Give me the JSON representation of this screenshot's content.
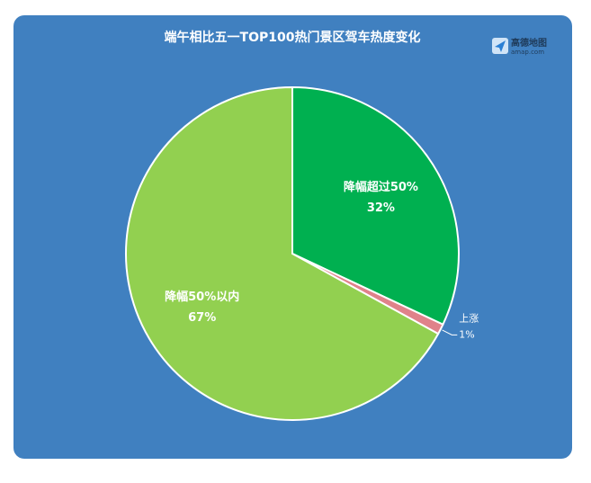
{
  "chart_data": {
    "type": "pie",
    "title": "端午相比五一TOP100热门景区驾车热度变化",
    "logo_name": "高德地图",
    "logo_url": "amap.com",
    "categories": [
      "降幅超过50%",
      "上涨",
      "降幅50%以内"
    ],
    "values": [
      32,
      1,
      67
    ],
    "value_labels": [
      "32%",
      "1%",
      "67%"
    ],
    "colors": [
      "#00b050",
      "#e0828a",
      "#92d050"
    ]
  }
}
